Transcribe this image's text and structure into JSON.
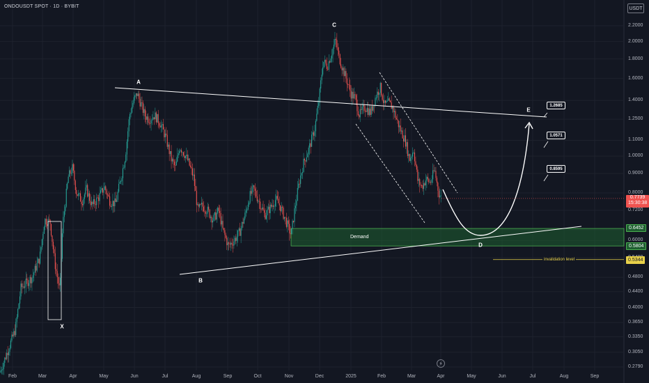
{
  "header": {
    "symbol": "ONDOUSDT SPOT · 1D · BYBIT",
    "currency": "USDT"
  },
  "chart_data": {
    "type": "candlestick",
    "symbol": "ONDOUSDT",
    "x_ticks": [
      "Feb",
      "Mar",
      "Apr",
      "May",
      "Jun",
      "Jul",
      "Aug",
      "Sep",
      "Oct",
      "Nov",
      "Dec",
      "2025",
      "Feb",
      "Mar",
      "Apr",
      "May",
      "Jun",
      "Jul",
      "Aug",
      "Sep"
    ],
    "y_ticks": [
      "2.2000",
      "2.0000",
      "1.8000",
      "1.6000",
      "1.4000",
      "1.2500",
      "1.1000",
      "1.0000",
      "0.9000",
      "0.8000",
      "0.7200",
      "0.6400",
      "0.6000",
      "0.5400",
      "0.4800",
      "0.4400",
      "0.4000",
      "0.3650",
      "0.3350",
      "0.3050",
      "0.2790"
    ],
    "y_scale": "log",
    "ylim": [
      0.27,
      2.4
    ],
    "price_path": [
      [
        0,
        0.27
      ],
      [
        22,
        0.35
      ],
      [
        30,
        0.45
      ],
      [
        46,
        0.48
      ],
      [
        57,
        0.54
      ],
      [
        64,
        0.68
      ],
      [
        72,
        0.67
      ],
      [
        79,
        0.52
      ],
      [
        86,
        0.44
      ],
      [
        90,
        0.66
      ],
      [
        98,
        0.88
      ],
      [
        104,
        0.93
      ],
      [
        110,
        0.8
      ],
      [
        118,
        0.76
      ],
      [
        124,
        0.82
      ],
      [
        132,
        0.74
      ],
      [
        142,
        0.78
      ],
      [
        150,
        0.83
      ],
      [
        158,
        0.76
      ],
      [
        166,
        0.75
      ],
      [
        174,
        0.88
      ],
      [
        180,
        1.0
      ],
      [
        186,
        1.28
      ],
      [
        192,
        1.4
      ],
      [
        197,
        1.46
      ],
      [
        203,
        1.36
      ],
      [
        208,
        1.28
      ],
      [
        214,
        1.25
      ],
      [
        222,
        1.28
      ],
      [
        230,
        1.22
      ],
      [
        238,
        1.12
      ],
      [
        246,
        0.98
      ],
      [
        252,
        0.93
      ],
      [
        258,
        1.06
      ],
      [
        264,
        1.02
      ],
      [
        270,
        0.97
      ],
      [
        278,
        0.88
      ],
      [
        284,
        0.72
      ],
      [
        290,
        0.74
      ],
      [
        298,
        0.72
      ],
      [
        306,
        0.68
      ],
      [
        314,
        0.72
      ],
      [
        320,
        0.64
      ],
      [
        328,
        0.58
      ],
      [
        336,
        0.6
      ],
      [
        344,
        0.63
      ],
      [
        352,
        0.7
      ],
      [
        358,
        0.78
      ],
      [
        364,
        0.82
      ],
      [
        372,
        0.76
      ],
      [
        380,
        0.7
      ],
      [
        388,
        0.73
      ],
      [
        396,
        0.77
      ],
      [
        402,
        0.74
      ],
      [
        410,
        0.68
      ],
      [
        418,
        0.62
      ],
      [
        424,
        0.74
      ],
      [
        430,
        0.86
      ],
      [
        436,
        0.96
      ],
      [
        444,
        1.05
      ],
      [
        452,
        1.18
      ],
      [
        458,
        1.4
      ],
      [
        464,
        1.78
      ],
      [
        470,
        1.72
      ],
      [
        476,
        1.86
      ],
      [
        482,
        2.02
      ],
      [
        486,
        1.84
      ],
      [
        492,
        1.7
      ],
      [
        498,
        1.58
      ],
      [
        504,
        1.46
      ],
      [
        510,
        1.42
      ],
      [
        516,
        1.28
      ],
      [
        524,
        1.35
      ],
      [
        532,
        1.3
      ],
      [
        540,
        1.44
      ],
      [
        546,
        1.52
      ],
      [
        552,
        1.36
      ],
      [
        558,
        1.38
      ],
      [
        564,
        1.34
      ],
      [
        570,
        1.24
      ],
      [
        576,
        1.16
      ],
      [
        582,
        1.1
      ],
      [
        588,
        0.98
      ],
      [
        594,
        1.04
      ],
      [
        600,
        0.86
      ],
      [
        606,
        0.83
      ],
      [
        612,
        0.87
      ],
      [
        618,
        0.85
      ],
      [
        624,
        0.92
      ],
      [
        630,
        0.8
      ],
      [
        634,
        0.774
      ]
    ],
    "last_price": "0.7739",
    "countdown": "15:30:38",
    "annotations": {
      "wave_points": [
        "X",
        "A",
        "B",
        "C",
        "D",
        "E"
      ],
      "targets": [
        "1.2685",
        "1.0571",
        "0.8595"
      ],
      "demand_zone": {
        "label": "Demand",
        "top": "0.6452",
        "bottom": "0.5804"
      },
      "invalidation": {
        "label": "invalidation level",
        "value": "0.5344"
      }
    },
    "colors": {
      "up": "#26a69a",
      "down": "#ef5350",
      "background": "#131722",
      "grid": "#1e222d",
      "demand_fill": "#1e5e30",
      "demand_border": "#4caf50",
      "invalidation": "#e8d14a",
      "annotation": "#ffffff"
    }
  },
  "price_tags": {
    "last": "0.7739",
    "countdown": "15:30:38",
    "demand_top": "0.6452",
    "demand_bottom": "0.5804",
    "invalidation": "0.5344"
  }
}
